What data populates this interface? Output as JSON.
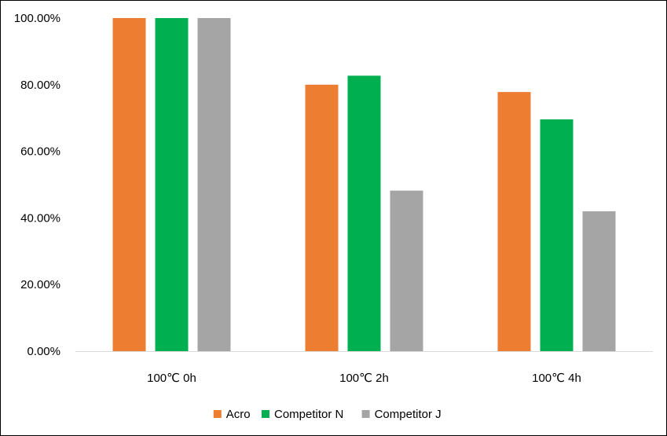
{
  "chart_data": {
    "type": "bar",
    "categories": [
      "100℃ 0h",
      "100℃ 2h",
      "100℃ 4h"
    ],
    "series": [
      {
        "name": "Acro",
        "values": [
          100.0,
          80.0,
          77.8
        ],
        "color": "#ED7D31"
      },
      {
        "name": "Competitor N",
        "values": [
          100.0,
          82.7,
          69.6
        ],
        "color": "#00B050"
      },
      {
        "name": "Competitor J",
        "values": [
          100.0,
          48.2,
          42.0
        ],
        "color": "#A5A5A5"
      }
    ],
    "yticks": [
      "0.00%",
      "20.00%",
      "40.00%",
      "60.00%",
      "80.00%",
      "100.00%"
    ],
    "ylim": [
      0,
      100
    ],
    "grid": false,
    "legend_position": "bottom",
    "title": "",
    "xlabel": "",
    "ylabel": ""
  }
}
